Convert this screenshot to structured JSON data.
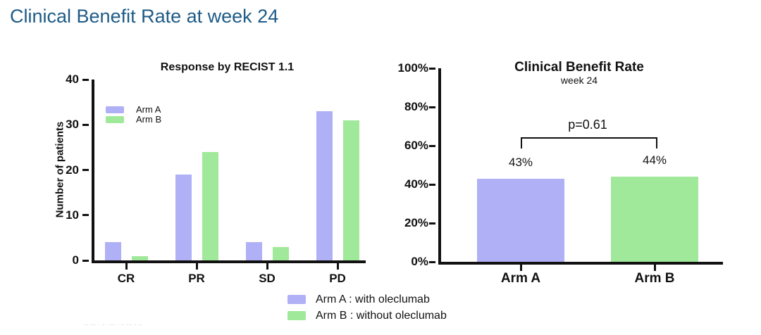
{
  "slide": {
    "title": "Clinical Benefit Rate at week 24",
    "footnote_marks": "·– –– · –· –– · – –– – –"
  },
  "colors": {
    "arm_a": "#b0b0f6",
    "arm_b": "#a0e89a",
    "axis": "#111111",
    "title": "#1e5b87"
  },
  "bottom_legend": {
    "arm_a": "Arm A : with oleclumab",
    "arm_b": "Arm B : without oleclumab"
  },
  "chart_data": [
    {
      "id": "recist",
      "type": "bar",
      "title": "Response by RECIST 1.1",
      "xlabel": "",
      "ylabel": "Number of patients",
      "categories": [
        "CR",
        "PR",
        "SD",
        "PD"
      ],
      "series": [
        {
          "name": "Arm A",
          "color": "#b0b0f6",
          "values": [
            4,
            19,
            4,
            33
          ]
        },
        {
          "name": "Arm B",
          "color": "#a0e89a",
          "values": [
            1,
            24,
            3,
            31
          ]
        }
      ],
      "ylim": [
        0,
        40
      ],
      "yticks": [
        0,
        10,
        20,
        30,
        40
      ],
      "grid": false,
      "legend_position": "top-left-inside"
    },
    {
      "id": "cbr",
      "type": "bar",
      "title": "Clinical Benefit Rate",
      "subtitle": "week 24",
      "xlabel": "",
      "ylabel": "",
      "categories": [
        "Arm A",
        "Arm B"
      ],
      "series": [
        {
          "name": "Clinical Benefit Rate",
          "values": [
            43,
            44
          ]
        }
      ],
      "bar_colors": [
        "#b0b0f6",
        "#a0e89a"
      ],
      "value_labels": [
        "43%",
        "44%"
      ],
      "ylim": [
        0,
        100
      ],
      "yticks": [
        "0%",
        "20%",
        "40%",
        "60%",
        "80%",
        "100%"
      ],
      "annotation": {
        "text": "p=0.61"
      },
      "grid": false,
      "legend_position": "none"
    }
  ]
}
